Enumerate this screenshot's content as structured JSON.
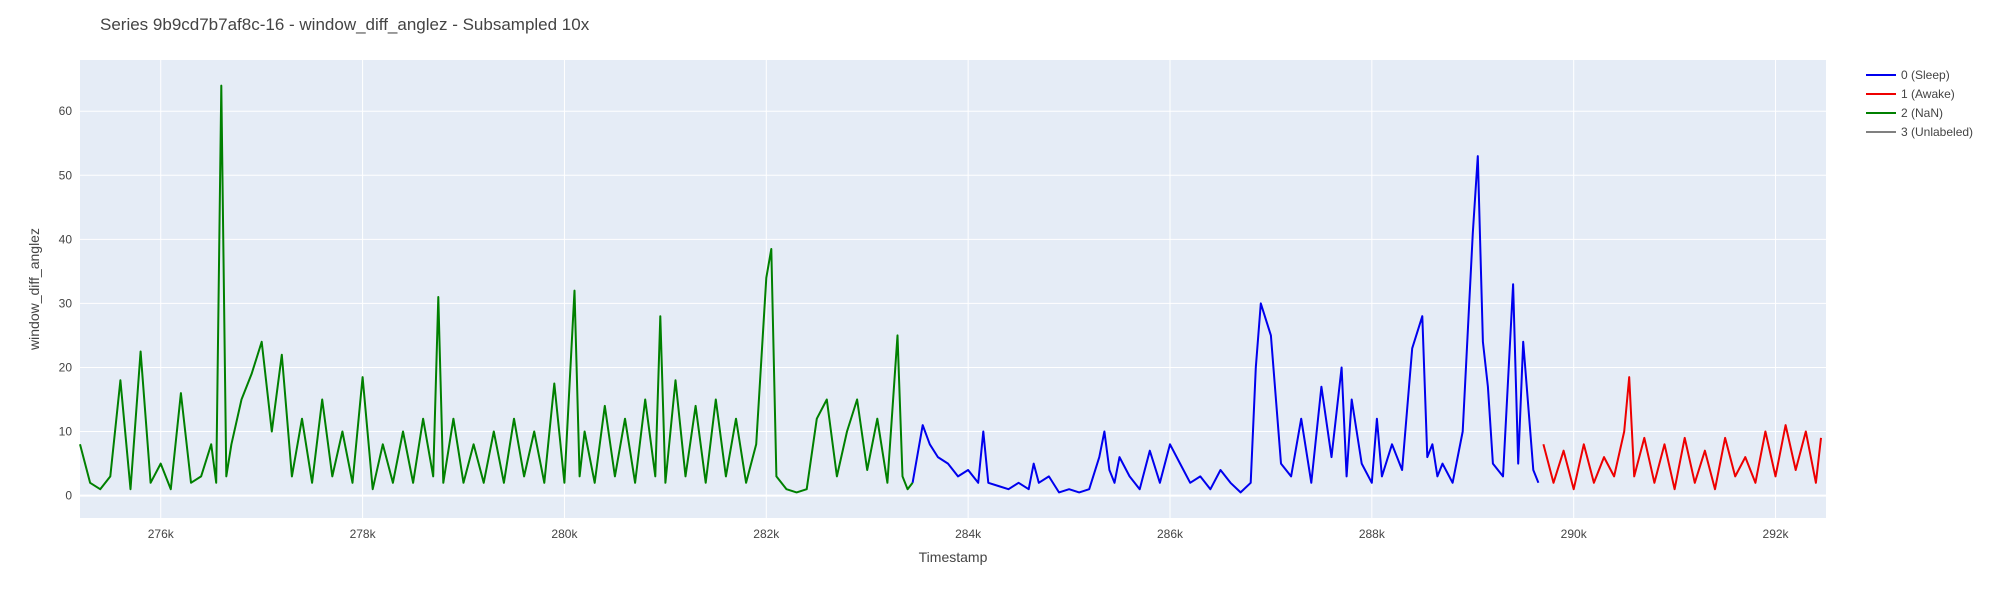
{
  "chart_data": {
    "type": "line",
    "title": "Series 9b9cd7b7af8c-16 - window_diff_anglez - Subsampled 10x",
    "xlabel": "Timestamp",
    "ylabel": "window_diff_anglez",
    "xlim": [
      275200,
      292500
    ],
    "ylim": [
      -3.5,
      68
    ],
    "x_ticks": [
      276000,
      278000,
      280000,
      282000,
      284000,
      286000,
      288000,
      290000,
      292000
    ],
    "x_tick_labels": [
      "276k",
      "278k",
      "280k",
      "282k",
      "284k",
      "286k",
      "288k",
      "290k",
      "292k"
    ],
    "y_ticks": [
      0,
      10,
      20,
      30,
      40,
      50,
      60
    ],
    "y_tick_labels": [
      "0",
      "10",
      "20",
      "30",
      "40",
      "50",
      "60"
    ],
    "grid": true,
    "legend_position": "top-right",
    "series": [
      {
        "name": "0 (Sleep)",
        "color": "#0000ee",
        "x": [
          283450,
          283550,
          283620,
          283700,
          283800,
          283900,
          284000,
          284100,
          284150,
          284200,
          284300,
          284400,
          284500,
          284600,
          284650,
          284700,
          284800,
          284900,
          285000,
          285100,
          285200,
          285300,
          285350,
          285400,
          285450,
          285500,
          285600,
          285700,
          285800,
          285900,
          286000,
          286100,
          286200,
          286300,
          286400,
          286500,
          286600,
          286700,
          286800,
          286850,
          286900,
          287000,
          287100,
          287200,
          287300,
          287400,
          287500,
          287600,
          287700,
          287750,
          287800,
          287900,
          288000,
          288050,
          288100,
          288200,
          288300,
          288400,
          288500,
          288550,
          288600,
          288650,
          288700,
          288800,
          288900,
          289000,
          289050,
          289100,
          289150,
          289200,
          289300,
          289400,
          289450,
          289500,
          289600,
          289650
        ],
        "y": [
          2,
          11,
          8,
          6,
          5,
          3,
          4,
          2,
          10,
          2,
          1.5,
          1,
          2,
          1,
          5,
          2,
          3,
          0.5,
          1,
          0.5,
          1,
          6,
          10,
          4,
          2,
          6,
          3,
          1,
          7,
          2,
          8,
          5,
          2,
          3,
          1,
          4,
          2,
          0.5,
          2,
          20,
          30,
          25,
          5,
          3,
          12,
          2,
          17,
          6,
          20,
          3,
          15,
          5,
          2,
          12,
          3,
          8,
          4,
          23,
          28,
          6,
          8,
          3,
          5,
          2,
          10,
          41,
          53,
          24,
          17,
          5,
          3,
          33,
          5,
          24,
          4,
          2
        ]
      },
      {
        "name": "1 (Awake)",
        "color": "#ee0000",
        "x": [
          289700,
          289800,
          289900,
          290000,
          290100,
          290200,
          290300,
          290400,
          290500,
          290550,
          290600,
          290700,
          290800,
          290900,
          291000,
          291100,
          291200,
          291300,
          291400,
          291500,
          291600,
          291700,
          291800,
          291900,
          292000,
          292100,
          292200,
          292300,
          292400,
          292450
        ],
        "y": [
          8,
          2,
          7,
          1,
          8,
          2,
          6,
          3,
          10,
          18.5,
          3,
          9,
          2,
          8,
          1,
          9,
          2,
          7,
          1,
          9,
          3,
          6,
          2,
          10,
          3,
          11,
          4,
          10,
          2,
          9
        ]
      },
      {
        "name": "2 (NaN)",
        "color": "#008000",
        "x": [
          275200,
          275300,
          275400,
          275500,
          275600,
          275700,
          275800,
          275900,
          276000,
          276100,
          276200,
          276300,
          276400,
          276500,
          276550,
          276600,
          276650,
          276700,
          276800,
          276900,
          277000,
          277100,
          277200,
          277300,
          277400,
          277500,
          277600,
          277700,
          277800,
          277900,
          278000,
          278100,
          278200,
          278300,
          278400,
          278500,
          278600,
          278700,
          278750,
          278800,
          278900,
          279000,
          279100,
          279200,
          279300,
          279400,
          279500,
          279600,
          279700,
          279800,
          279900,
          280000,
          280100,
          280150,
          280200,
          280300,
          280400,
          280500,
          280600,
          280700,
          280800,
          280900,
          280950,
          281000,
          281100,
          281200,
          281300,
          281400,
          281500,
          281600,
          281700,
          281800,
          281900,
          282000,
          282050,
          282100,
          282200,
          282300,
          282400,
          282500,
          282600,
          282700,
          282800,
          282900,
          283000,
          283100,
          283200,
          283300,
          283350,
          283400,
          283450
        ],
        "y": [
          8,
          2,
          1,
          3,
          18,
          1,
          22.5,
          2,
          5,
          1,
          16,
          2,
          3,
          8,
          2,
          64,
          3,
          8,
          15,
          19,
          24,
          10,
          22,
          3,
          12,
          2,
          15,
          3,
          10,
          2,
          18.5,
          1,
          8,
          2,
          10,
          2,
          12,
          3,
          31,
          2,
          12,
          2,
          8,
          2,
          10,
          2,
          12,
          3,
          10,
          2,
          17.5,
          2,
          32,
          3,
          10,
          2,
          14,
          3,
          12,
          2,
          15,
          3,
          28,
          2,
          18,
          3,
          14,
          2,
          15,
          3,
          12,
          2,
          8,
          34,
          38.5,
          3,
          1,
          0.5,
          1,
          12,
          15,
          3,
          10,
          15,
          4,
          12,
          2,
          25,
          3,
          1,
          2
        ]
      },
      {
        "name": "3 (Unlabeled)",
        "color": "#808080",
        "x": [],
        "y": []
      }
    ]
  }
}
